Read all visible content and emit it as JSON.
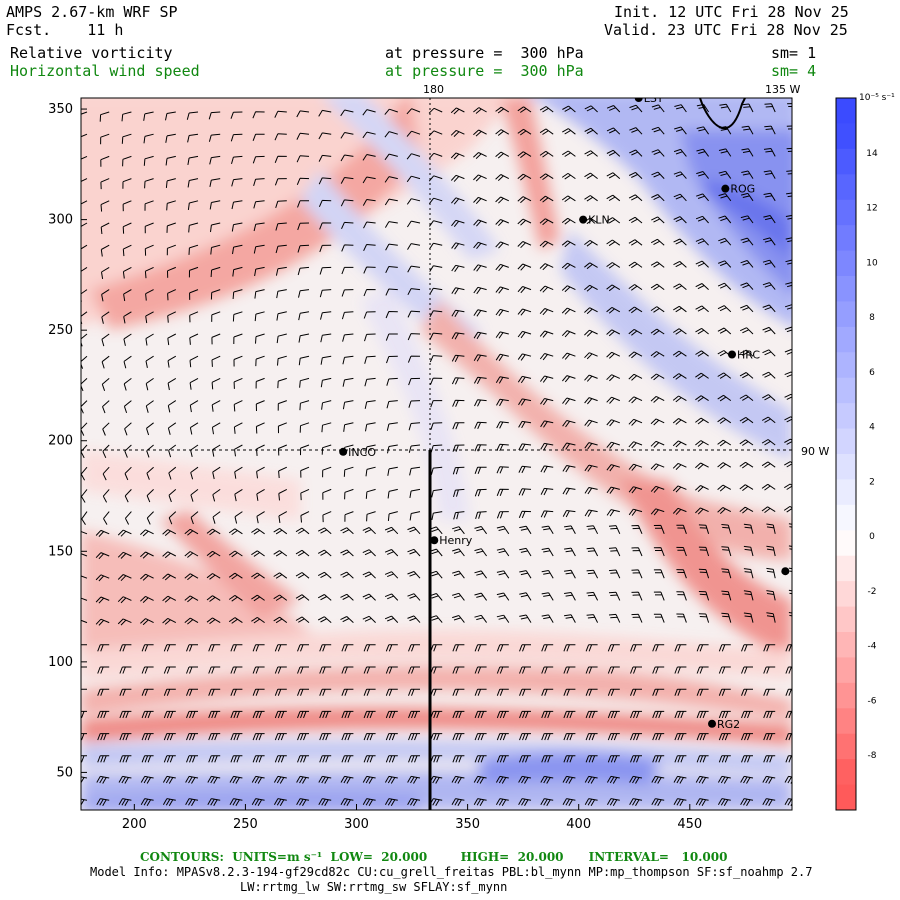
{
  "header": {
    "title": "AMPS 2.67-km WRF SP",
    "forecast": "Fcst.    11 h",
    "init": "Init. 12 UTC Fri 28 Nov 25",
    "valid": "Valid. 23 UTC Fri 28 Nov 25",
    "field1": {
      "name": "Relative vorticity",
      "level": "at pressure =  300 hPa",
      "smooth": "sm= 1"
    },
    "field2": {
      "name": "Horizontal wind speed",
      "level": "at pressure =  300 hPa",
      "smooth": "sm= 4"
    }
  },
  "map": {
    "x_ticks": [
      "200",
      "250",
      "300",
      "350",
      "400",
      "450"
    ],
    "y_ticks": [
      "350",
      "300",
      "250",
      "200",
      "150",
      "100",
      "50"
    ],
    "x_range": [
      176,
      496
    ],
    "y_range": [
      33,
      355
    ],
    "longitude_labels": {
      "top_180": "180",
      "top_135w": "135 W",
      "right_90w": "90 W"
    },
    "stations": [
      {
        "id": "LSY",
        "label": "LSY",
        "x": 427,
        "y": 355
      },
      {
        "id": "ROG",
        "label": "ROG",
        "x": 466,
        "y": 314
      },
      {
        "id": "KLN",
        "label": "KLN",
        "x": 402,
        "y": 300
      },
      {
        "id": "HRC",
        "label": "HRC",
        "x": 469,
        "y": 239
      },
      {
        "id": "INCO",
        "label": "INCO",
        "x": 294,
        "y": 195
      },
      {
        "id": "Henry",
        "label": "Henry",
        "x": 335,
        "y": 155
      },
      {
        "id": "EDGE",
        "label": "",
        "x": 493,
        "y": 141
      },
      {
        "id": "RG2",
        "label": "RG2",
        "x": 460,
        "y": 72
      }
    ],
    "positive_color": "#3b4bff",
    "negative_color": "#ff5a5a"
  },
  "colorbar": {
    "units": "10⁻⁵ s⁻¹",
    "labels": [
      "14",
      "12",
      "10",
      "8",
      "6",
      "4",
      "2",
      "0",
      "-2",
      "-4",
      "-6",
      "-8"
    ]
  },
  "footer": {
    "contours": "CONTOURS:  UNITS=m s⁻¹  LOW=  20.000        HIGH=  20.000      INTERVAL=   10.000",
    "model_info": "Model Info: MPASv8.2.3-194-gf29cd82c CU:cu_grell_freitas PBL:bl_mynn MP:mp_thompson SF:sf_noahmp 2.7",
    "model_info2": "LW:rrtmg_lw SW:rrtmg_sw SFLAY:sf_mynn"
  }
}
